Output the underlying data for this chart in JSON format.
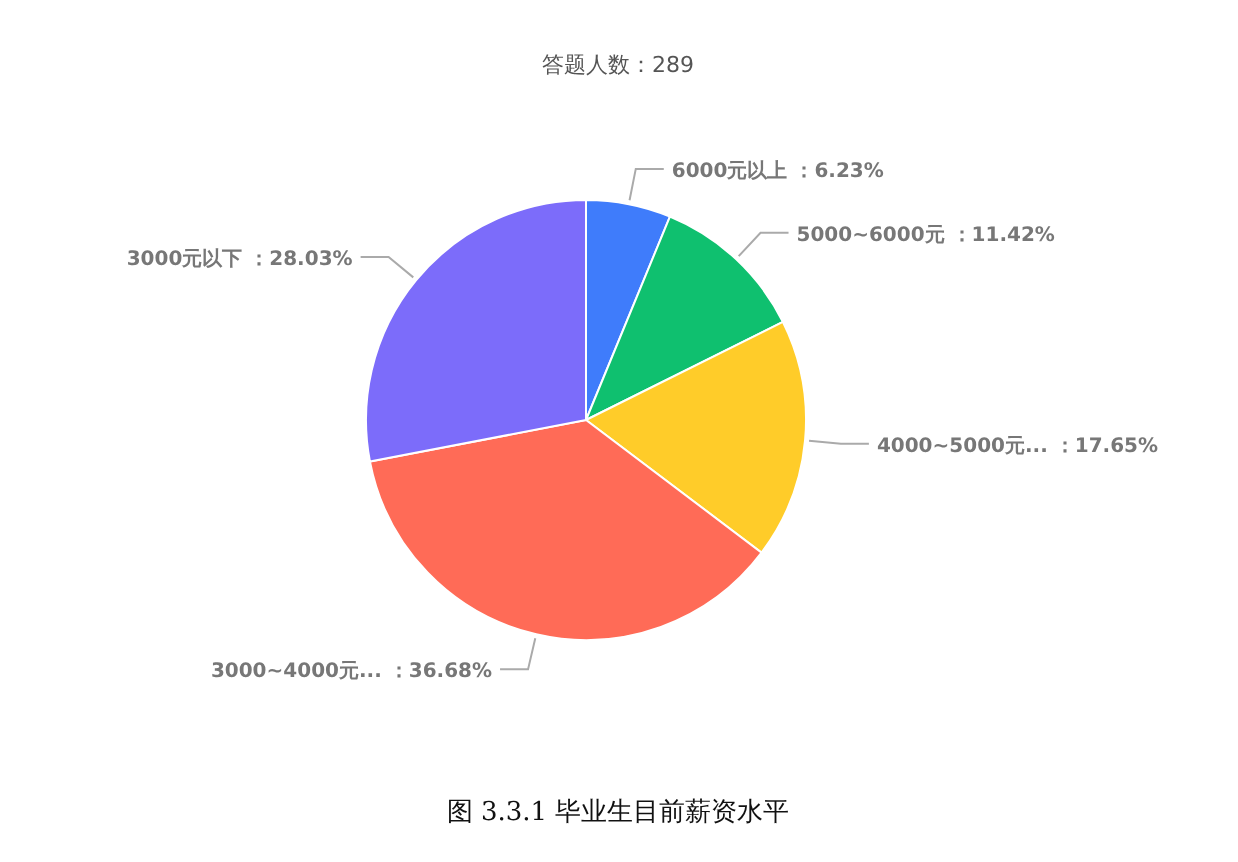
{
  "chart_data": {
    "type": "pie",
    "title": "答题人数：289",
    "categories": [
      "6000元以上",
      "5000~6000元",
      "4000~5000元...",
      "3000~4000元...",
      "3000元以下"
    ],
    "values": [
      6.23,
      11.42,
      17.65,
      36.68,
      28.03
    ],
    "value_labels": [
      "6.23%",
      "11.42%",
      "17.65%",
      "36.68%",
      "28.03%"
    ],
    "colors": [
      "#3f7cfb",
      "#0fc06f",
      "#ffcc29",
      "#ff6b57",
      "#7c6cfa"
    ],
    "annotations": [
      "图 3.3.1   毕业生目前薪资水平"
    ]
  }
}
